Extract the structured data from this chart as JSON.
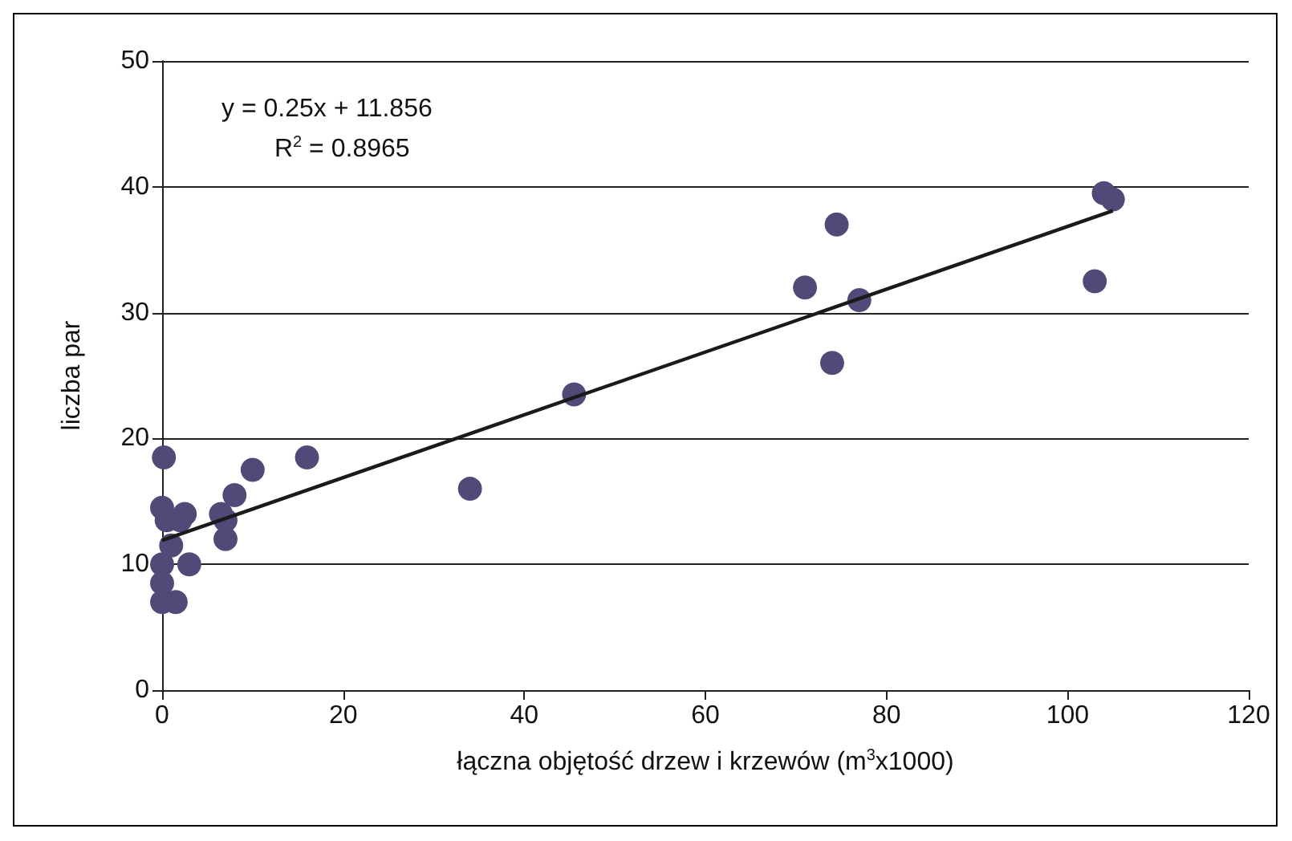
{
  "chart_data": {
    "type": "scatter",
    "xlabel": "łączna objętość drzew i krzewów (m$^{3}$x1000)",
    "ylabel": "liczba par",
    "annotations": [
      "y = 0.25x + 11.856",
      "R$^{2}$ = 0.8965"
    ],
    "xlim": [
      0,
      120
    ],
    "xticks": [
      0,
      20,
      40,
      60,
      80,
      100,
      120
    ],
    "ylim": [
      0,
      50
    ],
    "yticks": [
      0,
      10,
      20,
      30,
      40,
      50
    ],
    "grid": "y",
    "marker": "circle",
    "series": [
      {
        "color": "#4f4a78",
        "x": [
          0.2,
          0,
          0.5,
          1,
          0,
          0,
          0,
          1.5,
          2.5,
          2,
          3,
          6.5,
          7,
          7,
          8,
          10,
          16,
          34,
          45.5,
          71,
          74,
          74.5,
          77,
          103,
          104,
          105
        ],
        "values": [
          18.5,
          14.5,
          13.5,
          11.5,
          10,
          8.5,
          7,
          7,
          14,
          13.5,
          10,
          14,
          13.5,
          12,
          15.5,
          17.5,
          18.5,
          16,
          23.5,
          32,
          26,
          37,
          31,
          32.5,
          39.5,
          39
        ]
      },
      {
        "type": "line",
        "color": "#1a1a1a",
        "marker": "none",
        "x": [
          0,
          105
        ],
        "values": [
          11.9,
          38.1
        ]
      }
    ]
  }
}
